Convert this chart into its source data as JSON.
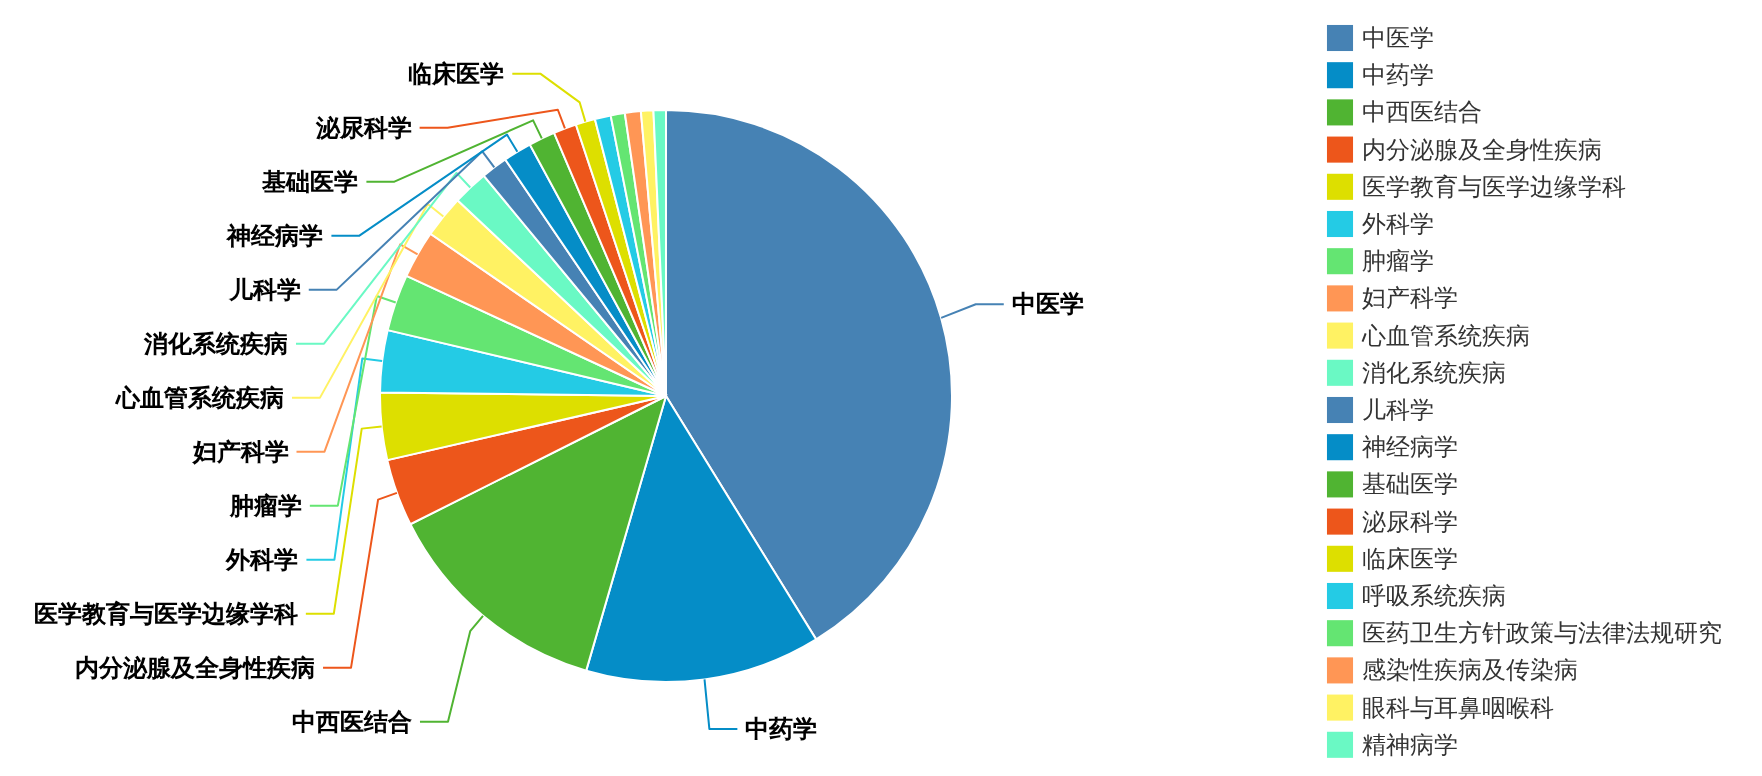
{
  "chart_data": {
    "type": "pie",
    "legend": "right",
    "categories": [
      "中医学",
      "中药学",
      "中西医结合",
      "内分泌腺及全身性疾病",
      "医学教育与医学边缘学科",
      "外科学",
      "肿瘤学",
      "妇产科学",
      "心血管系统疾病",
      "消化系统疾病",
      "儿科学",
      "神经病学",
      "基础医学",
      "泌尿科学",
      "临床医学",
      "呼吸系统疾病",
      "医药卫生方针政策与法律法规研究",
      "感染性疾病及传染病",
      "眼科与耳鼻咽喉科",
      "精神病学"
    ],
    "values": [
      41.2,
      13.3,
      13.1,
      3.8,
      3.8,
      3.5,
      3.2,
      2.7,
      2.4,
      2.0,
      1.5,
      1.6,
      1.5,
      1.3,
      1.1,
      0.9,
      0.8,
      0.9,
      0.7,
      0.7
    ],
    "colors": [
      "#4682b4",
      "#058dc7",
      "#50b432",
      "#ed561b",
      "#dddf00",
      "#24cbe5",
      "#64e572",
      "#ff9655",
      "#fff263",
      "#6af9c4",
      "#4682b4",
      "#058dc7",
      "#50b432",
      "#ed561b",
      "#dddf00",
      "#24cbe5",
      "#64e572",
      "#ff9655",
      "#fff263",
      "#6af9c4"
    ]
  }
}
